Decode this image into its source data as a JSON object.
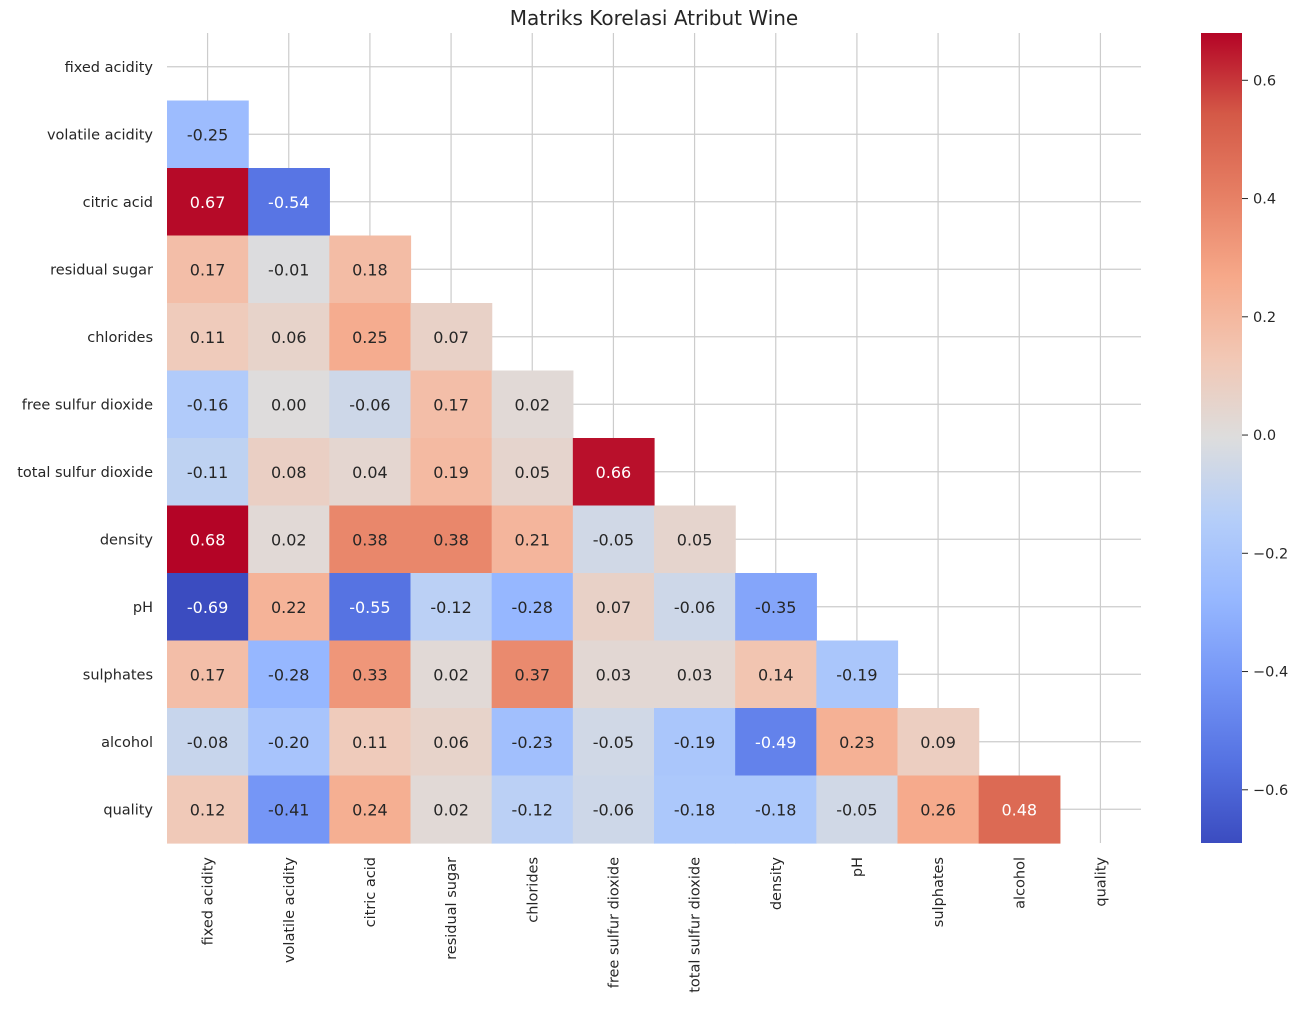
{
  "chart_data": {
    "type": "heatmap",
    "title": "Matriks Korelasi Atribut Wine",
    "variables": [
      "fixed acidity",
      "volatile acidity",
      "citric acid",
      "residual sugar",
      "chlorides",
      "free sulfur dioxide",
      "total sulfur dioxide",
      "density",
      "pH",
      "sulphates",
      "alcohol",
      "quality"
    ],
    "mask": "upper-triangle-including-diagonal",
    "matrix": [
      [
        null,
        null,
        null,
        null,
        null,
        null,
        null,
        null,
        null,
        null,
        null,
        null
      ],
      [
        -0.25,
        null,
        null,
        null,
        null,
        null,
        null,
        null,
        null,
        null,
        null,
        null
      ],
      [
        0.67,
        -0.54,
        null,
        null,
        null,
        null,
        null,
        null,
        null,
        null,
        null,
        null
      ],
      [
        0.17,
        -0.01,
        0.18,
        null,
        null,
        null,
        null,
        null,
        null,
        null,
        null,
        null
      ],
      [
        0.11,
        0.06,
        0.25,
        0.07,
        null,
        null,
        null,
        null,
        null,
        null,
        null,
        null
      ],
      [
        -0.16,
        -0.0,
        -0.06,
        0.17,
        0.02,
        null,
        null,
        null,
        null,
        null,
        null,
        null
      ],
      [
        -0.11,
        0.08,
        0.04,
        0.19,
        0.05,
        0.66,
        null,
        null,
        null,
        null,
        null,
        null
      ],
      [
        0.68,
        0.02,
        0.38,
        0.38,
        0.21,
        -0.05,
        0.05,
        null,
        null,
        null,
        null,
        null
      ],
      [
        -0.69,
        0.22,
        -0.55,
        -0.12,
        -0.28,
        0.07,
        -0.06,
        -0.35,
        null,
        null,
        null,
        null
      ],
      [
        0.17,
        -0.28,
        0.33,
        0.02,
        0.37,
        0.03,
        0.03,
        0.14,
        -0.19,
        null,
        null,
        null
      ],
      [
        -0.08,
        -0.2,
        0.11,
        0.06,
        -0.23,
        -0.05,
        -0.19,
        -0.49,
        0.23,
        0.09,
        null,
        null
      ],
      [
        0.12,
        -0.41,
        0.24,
        0.02,
        -0.12,
        -0.06,
        -0.18,
        -0.18,
        -0.05,
        0.26,
        0.48,
        null
      ]
    ],
    "annotation_format": "2 decimals",
    "colormap": "coolwarm",
    "color_range": [
      -0.69,
      0.68
    ],
    "colorbar_ticks": [
      -0.6,
      -0.4,
      -0.2,
      0.0,
      0.2,
      0.4,
      0.6
    ],
    "colorbar_tick_labels": [
      "−0.6",
      "−0.4",
      "−0.2",
      "0.0",
      "0.2",
      "0.4",
      "0.6"
    ],
    "grid": true,
    "colors": {
      "background": "#ffffff",
      "grid": "#cccccc",
      "text_dark": "#262626",
      "text_light": "#ffffff"
    }
  }
}
